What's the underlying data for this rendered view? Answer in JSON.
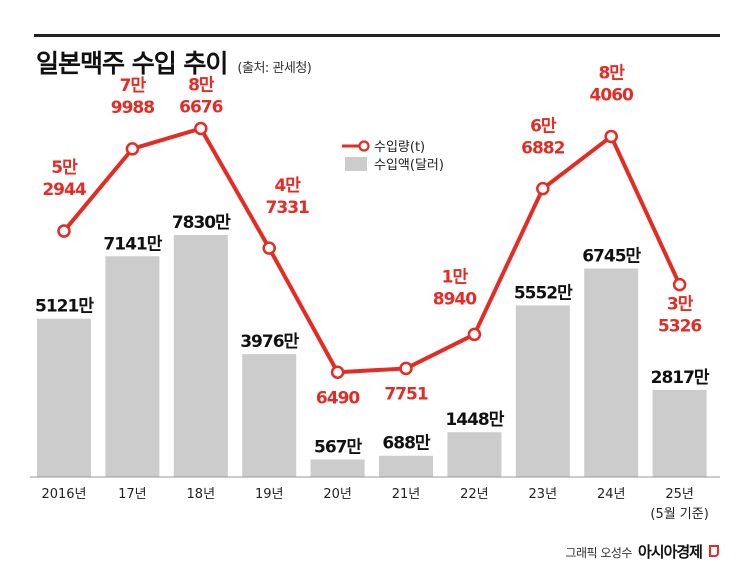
{
  "title": "일본맥주 수입 추이",
  "source": "(출처: 관세청)",
  "credit": {
    "name": "그래픽 오성수",
    "brand": "아시아경제"
  },
  "colors": {
    "line": "#e42b24",
    "bar": "#cccccc",
    "text": "#111111"
  },
  "chart_data": {
    "type": "bar",
    "categories": [
      "2016년",
      "17년",
      "18년",
      "19년",
      "20년",
      "21년",
      "22년",
      "23년",
      "24년",
      "25년"
    ],
    "category_notes": [
      "",
      "",
      "",
      "",
      "",
      "",
      "",
      "",
      "",
      "(5월 기준)"
    ],
    "legend_placement": "center-top",
    "grid": false,
    "series": [
      {
        "name": "수입액(달러)",
        "type": "bar",
        "values": [
          51210000,
          71410000,
          78300000,
          39760000,
          5670000,
          6880000,
          14480000,
          55520000,
          67450000,
          28170000
        ],
        "labels": [
          "5121만",
          "7141만",
          "7830만",
          "3976만",
          "567만",
          "688만",
          "1448만",
          "5552만",
          "6745만",
          "2817만"
        ]
      },
      {
        "name": "수입량(t)",
        "type": "line",
        "values": [
          52944,
          79988,
          86676,
          47331,
          6490,
          7751,
          18940,
          66882,
          84060,
          35326
        ],
        "labels": [
          [
            "5만",
            "2944"
          ],
          [
            "7만",
            "9988"
          ],
          [
            "8만",
            "6676"
          ],
          [
            "4만",
            "7331"
          ],
          [
            "6490"
          ],
          [
            "7751"
          ],
          [
            "1만",
            "8940"
          ],
          [
            "6만",
            "6882"
          ],
          [
            "8만",
            "4060"
          ],
          [
            "3만",
            "5326"
          ]
        ]
      }
    ]
  }
}
